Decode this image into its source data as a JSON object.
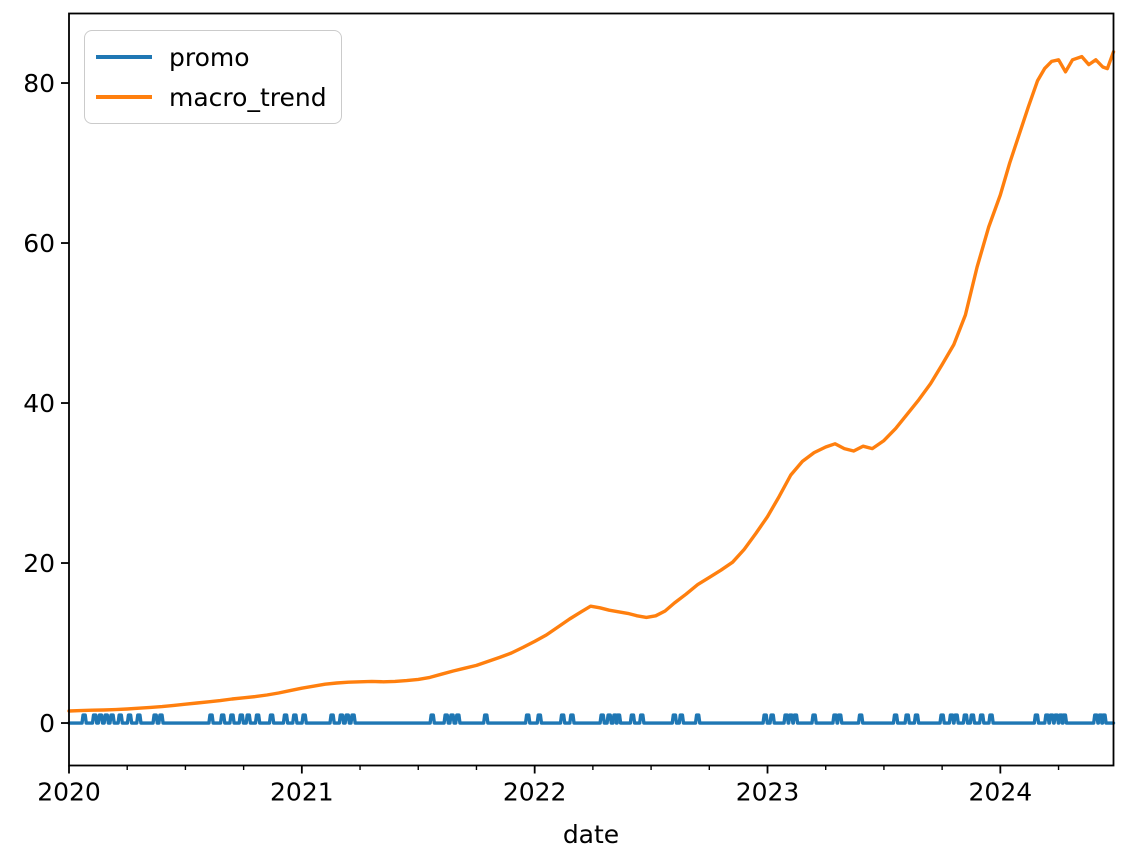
{
  "figure": {
    "background": "#ffffff",
    "axes_edge_color": "#000000",
    "tick_color": "#000000"
  },
  "chart_data": {
    "type": "line",
    "title": "",
    "xlabel": "date",
    "ylabel": "",
    "grid": false,
    "legend_position": "upper-left",
    "xlim": [
      2020.0,
      2024.486
    ],
    "ylim": [
      -5.31,
      88.69
    ],
    "x_major_ticks": [
      2020,
      2021,
      2022,
      2023,
      2024
    ],
    "x_major_tick_labels": [
      "2020",
      "2021",
      "2022",
      "2023",
      "2024"
    ],
    "x_minor_tick_interval": 0.25,
    "y_major_ticks": [
      0,
      20,
      40,
      60,
      80
    ],
    "y_major_tick_labels": [
      "0",
      "20",
      "40",
      "60",
      "80"
    ],
    "series": [
      {
        "name": "promo",
        "color": "#1f77b4",
        "style": "pulse",
        "baseline": 0,
        "pulse_height": 1,
        "pulse_half_width_years": 0.009,
        "pulse_times": [
          2020.065,
          2020.11,
          2020.135,
          2020.16,
          2020.185,
          2020.22,
          2020.26,
          2020.3,
          2020.37,
          2020.395,
          2020.61,
          2020.66,
          2020.7,
          2020.74,
          2020.77,
          2020.81,
          2020.87,
          2020.93,
          2020.97,
          2021.01,
          2021.13,
          2021.17,
          2021.195,
          2021.22,
          2021.56,
          2021.62,
          2021.645,
          2021.67,
          2021.79,
          2021.97,
          2022.02,
          2022.12,
          2022.16,
          2022.29,
          2022.32,
          2022.345,
          2022.36,
          2022.42,
          2022.46,
          2022.6,
          2022.63,
          2022.7,
          2022.99,
          2023.02,
          2023.08,
          2023.1,
          2023.12,
          2023.2,
          2023.29,
          2023.31,
          2023.4,
          2023.55,
          2023.6,
          2023.64,
          2023.75,
          2023.79,
          2023.81,
          2023.85,
          2023.88,
          2023.92,
          2023.96,
          2024.155,
          2024.2,
          2024.22,
          2024.24,
          2024.26,
          2024.275,
          2024.41,
          2024.43,
          2024.445
        ]
      },
      {
        "name": "macro_trend",
        "color": "#ff7f0e",
        "style": "line",
        "points": [
          [
            2020.0,
            1.5
          ],
          [
            2020.05,
            1.55
          ],
          [
            2020.1,
            1.6
          ],
          [
            2020.15,
            1.63
          ],
          [
            2020.2,
            1.68
          ],
          [
            2020.25,
            1.75
          ],
          [
            2020.3,
            1.85
          ],
          [
            2020.35,
            1.95
          ],
          [
            2020.4,
            2.05
          ],
          [
            2020.45,
            2.2
          ],
          [
            2020.5,
            2.35
          ],
          [
            2020.55,
            2.5
          ],
          [
            2020.6,
            2.65
          ],
          [
            2020.65,
            2.8
          ],
          [
            2020.7,
            3.0
          ],
          [
            2020.75,
            3.15
          ],
          [
            2020.8,
            3.3
          ],
          [
            2020.85,
            3.5
          ],
          [
            2020.9,
            3.75
          ],
          [
            2020.95,
            4.05
          ],
          [
            2021.0,
            4.35
          ],
          [
            2021.05,
            4.6
          ],
          [
            2021.1,
            4.85
          ],
          [
            2021.15,
            5.0
          ],
          [
            2021.2,
            5.1
          ],
          [
            2021.25,
            5.15
          ],
          [
            2021.3,
            5.2
          ],
          [
            2021.35,
            5.15
          ],
          [
            2021.4,
            5.2
          ],
          [
            2021.45,
            5.3
          ],
          [
            2021.5,
            5.45
          ],
          [
            2021.55,
            5.7
          ],
          [
            2021.6,
            6.1
          ],
          [
            2021.65,
            6.5
          ],
          [
            2021.7,
            6.85
          ],
          [
            2021.75,
            7.2
          ],
          [
            2021.8,
            7.7
          ],
          [
            2021.85,
            8.2
          ],
          [
            2021.9,
            8.75
          ],
          [
            2021.95,
            9.45
          ],
          [
            2022.0,
            10.2
          ],
          [
            2022.05,
            11.0
          ],
          [
            2022.1,
            12.0
          ],
          [
            2022.15,
            13.0
          ],
          [
            2022.2,
            13.9
          ],
          [
            2022.24,
            14.6
          ],
          [
            2022.28,
            14.4
          ],
          [
            2022.32,
            14.1
          ],
          [
            2022.36,
            13.9
          ],
          [
            2022.4,
            13.7
          ],
          [
            2022.44,
            13.4
          ],
          [
            2022.48,
            13.2
          ],
          [
            2022.52,
            13.4
          ],
          [
            2022.56,
            14.0
          ],
          [
            2022.6,
            15.0
          ],
          [
            2022.65,
            16.1
          ],
          [
            2022.7,
            17.3
          ],
          [
            2022.75,
            18.2
          ],
          [
            2022.8,
            19.1
          ],
          [
            2022.85,
            20.1
          ],
          [
            2022.9,
            21.7
          ],
          [
            2022.95,
            23.7
          ],
          [
            2023.0,
            25.8
          ],
          [
            2023.05,
            28.3
          ],
          [
            2023.1,
            31.0
          ],
          [
            2023.15,
            32.7
          ],
          [
            2023.2,
            33.8
          ],
          [
            2023.25,
            34.5
          ],
          [
            2023.29,
            34.9
          ],
          [
            2023.33,
            34.3
          ],
          [
            2023.37,
            34.0
          ],
          [
            2023.41,
            34.6
          ],
          [
            2023.45,
            34.3
          ],
          [
            2023.5,
            35.3
          ],
          [
            2023.55,
            36.8
          ],
          [
            2023.6,
            38.6
          ],
          [
            2023.65,
            40.4
          ],
          [
            2023.7,
            42.4
          ],
          [
            2023.75,
            44.8
          ],
          [
            2023.8,
            47.3
          ],
          [
            2023.85,
            51.0
          ],
          [
            2023.9,
            57.0
          ],
          [
            2023.95,
            62.0
          ],
          [
            2024.0,
            66.0
          ],
          [
            2024.04,
            70.0
          ],
          [
            2024.08,
            73.5
          ],
          [
            2024.12,
            77.0
          ],
          [
            2024.16,
            80.3
          ],
          [
            2024.19,
            81.8
          ],
          [
            2024.22,
            82.7
          ],
          [
            2024.25,
            82.9
          ],
          [
            2024.28,
            81.4
          ],
          [
            2024.31,
            82.9
          ],
          [
            2024.35,
            83.3
          ],
          [
            2024.38,
            82.3
          ],
          [
            2024.41,
            82.9
          ],
          [
            2024.44,
            82.0
          ],
          [
            2024.46,
            81.8
          ],
          [
            2024.486,
            83.9
          ]
        ]
      }
    ]
  }
}
